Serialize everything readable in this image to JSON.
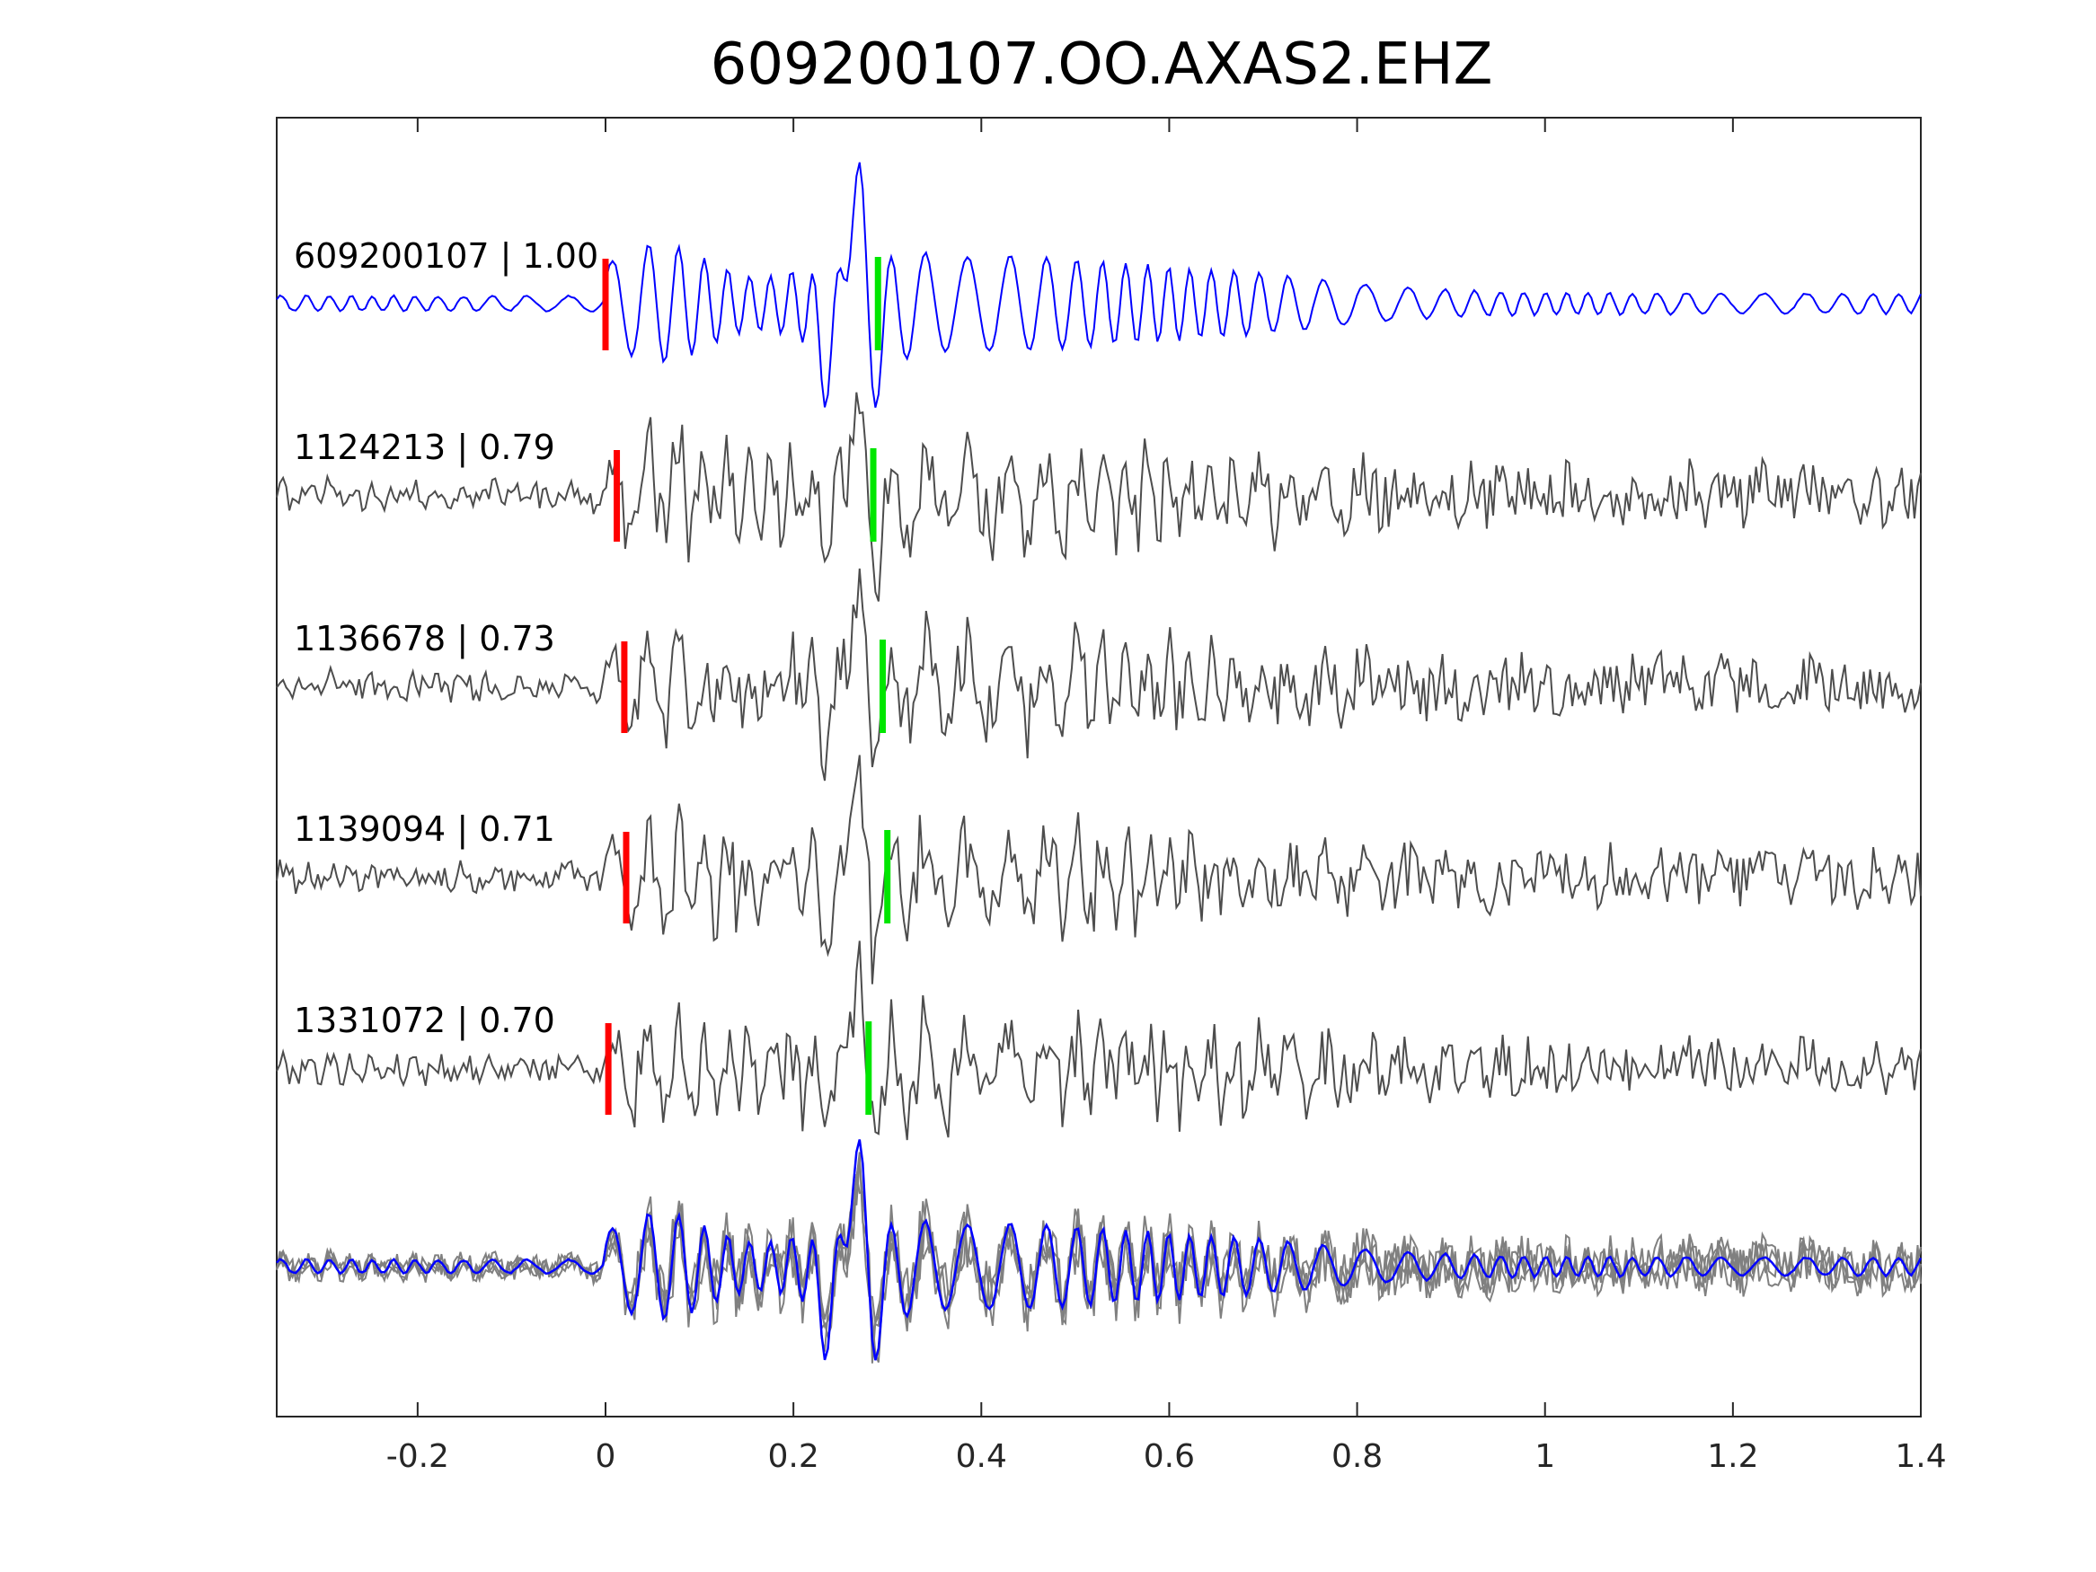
{
  "chart_data": {
    "type": "line",
    "title": "609200107.OO.AXAS2.EHZ",
    "xlabel": "",
    "ylabel": "",
    "xlim": [
      -0.35,
      1.4
    ],
    "x_ticks": [
      -0.2,
      0,
      0.2,
      0.4,
      0.6,
      0.8,
      1,
      1.2,
      1.4
    ],
    "x_tick_labels": [
      "-0.2",
      "0",
      "0.2",
      "0.4",
      "0.6",
      "0.8",
      "1",
      "1.2",
      "1.4"
    ],
    "grid": false,
    "colors": {
      "master": "#0000ff",
      "matched": "#4d4d4d",
      "overlay": "#808080",
      "p_pick": "#ff0000",
      "s_pick": "#00e600"
    },
    "series": [
      {
        "label": "609200107 | 1.00",
        "p_pick": 0.0,
        "s_pick": 0.29
      },
      {
        "label": "1124213 | 0.79",
        "p_pick": 0.012,
        "s_pick": 0.285
      },
      {
        "label": "1136678 | 0.73",
        "p_pick": 0.02,
        "s_pick": 0.295
      },
      {
        "label": "1139094 | 0.71",
        "p_pick": 0.022,
        "s_pick": 0.3
      },
      {
        "label": "1331072 | 0.70",
        "p_pick": 0.003,
        "s_pick": 0.28
      }
    ],
    "stack": {
      "label": ""
    }
  }
}
